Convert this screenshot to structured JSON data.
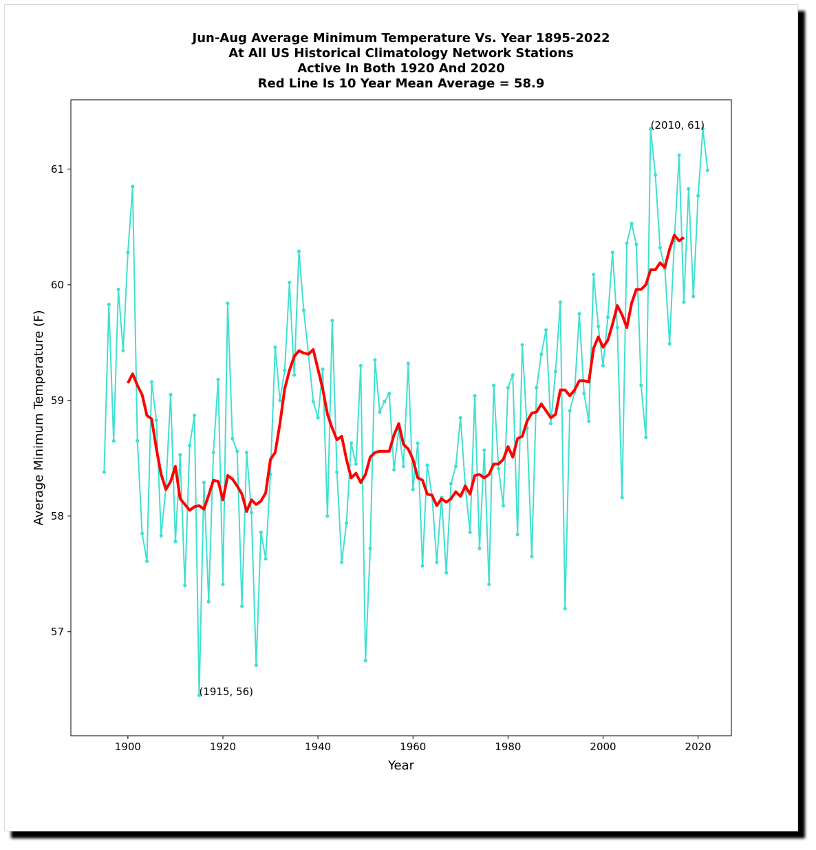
{
  "chart_data": {
    "type": "line",
    "title_lines": [
      "Jun-Aug Average Minimum Temperature Vs. Year 1895-2022",
      "At All US Historical Climatology Network Stations",
      "Active In Both 1920 And 2020",
      "Red Line Is 10 Year Mean  Average = 58.9"
    ],
    "xlabel": "Year",
    "ylabel": "Average Minimum Temperature (F)",
    "xlim": [
      1888,
      2027
    ],
    "ylim": [
      56.1,
      61.6
    ],
    "xticks": [
      1900,
      1920,
      1940,
      1960,
      1980,
      2000,
      2020
    ],
    "yticks": [
      57,
      58,
      59,
      60,
      61
    ],
    "colors": {
      "annual": "#40e0d0",
      "mean": "#ff0000"
    },
    "annotations": [
      {
        "text": "(1915, 56)",
        "x": 1915,
        "y": 56.45
      },
      {
        "text": "(2010, 61)",
        "x": 2010,
        "y": 61.35
      }
    ],
    "series": [
      {
        "x_start": 1895,
        "values": [
          58.38,
          59.83,
          58.65,
          59.96,
          59.43,
          60.28,
          60.85,
          58.65,
          57.85,
          57.61,
          59.16,
          58.83,
          57.83,
          58.25,
          59.05,
          57.78,
          58.53,
          57.4,
          58.61,
          58.87,
          56.45,
          58.29,
          57.26,
          58.55,
          59.18,
          57.41,
          59.84,
          58.67,
          58.56,
          57.22,
          58.55,
          58.03,
          56.71,
          57.86,
          57.63,
          58.36,
          59.46,
          59.0,
          59.26,
          60.02,
          59.22,
          60.29,
          59.78,
          59.4,
          58.99,
          58.85,
          59.27,
          58.0,
          59.69,
          58.38,
          57.6,
          57.94,
          58.63,
          58.45,
          59.3,
          56.75,
          57.72,
          59.35,
          58.9,
          58.99,
          59.06,
          58.4,
          58.75,
          58.43,
          59.32,
          58.23,
          58.63,
          57.57,
          58.44,
          58.18,
          57.6,
          58.16,
          57.51,
          58.28,
          58.43,
          58.85,
          58.26,
          57.86,
          59.04,
          57.72,
          58.57,
          57.41,
          59.13,
          58.41,
          58.09,
          59.11,
          59.22,
          57.84,
          59.48,
          58.76,
          57.65,
          59.11,
          59.4,
          59.61,
          58.8,
          59.25,
          59.85,
          57.2,
          58.91,
          59.07,
          59.75,
          59.06,
          58.82,
          60.09,
          59.64,
          59.3,
          59.72,
          60.28,
          59.63,
          58.16,
          60.36,
          60.53,
          60.35,
          59.13,
          58.68,
          61.35,
          60.95,
          60.32,
          60.14,
          59.49,
          60.38,
          61.12,
          59.85,
          60.83,
          59.9,
          60.77,
          61.35,
          60.99
        ]
      },
      {
        "x_start": 1900,
        "values": [
          59.15,
          59.23,
          59.13,
          59.05,
          58.87,
          58.84,
          58.58,
          58.36,
          58.23,
          58.3,
          58.43,
          58.15,
          58.1,
          58.05,
          58.08,
          58.09,
          58.06,
          58.18,
          58.31,
          58.3,
          58.14,
          58.35,
          58.32,
          58.26,
          58.19,
          58.04,
          58.14,
          58.1,
          58.13,
          58.2,
          58.49,
          58.55,
          58.8,
          59.1,
          59.26,
          59.38,
          59.43,
          59.41,
          59.4,
          59.44,
          59.27,
          59.1,
          58.88,
          58.76,
          58.66,
          58.69,
          58.49,
          58.33,
          58.37,
          58.29,
          58.36,
          58.51,
          58.55,
          58.56,
          58.56,
          58.56,
          58.7,
          58.8,
          58.62,
          58.58,
          58.49,
          58.33,
          58.31,
          58.19,
          58.18,
          58.09,
          58.15,
          58.12,
          58.15,
          58.21,
          58.17,
          58.26,
          58.19,
          58.35,
          58.36,
          58.33,
          58.36,
          58.45,
          58.45,
          58.49,
          58.6,
          58.51,
          58.67,
          58.69,
          58.82,
          58.89,
          58.9,
          58.97,
          58.91,
          58.85,
          58.88,
          59.09,
          59.09,
          59.04,
          59.09,
          59.17,
          59.17,
          59.16,
          59.45,
          59.55,
          59.46,
          59.52,
          59.66,
          59.82,
          59.74,
          59.63,
          59.84,
          59.96,
          59.96,
          60.0,
          60.13,
          60.13,
          60.19,
          60.15,
          60.31,
          60.43,
          60.38,
          60.41
        ]
      }
    ]
  }
}
